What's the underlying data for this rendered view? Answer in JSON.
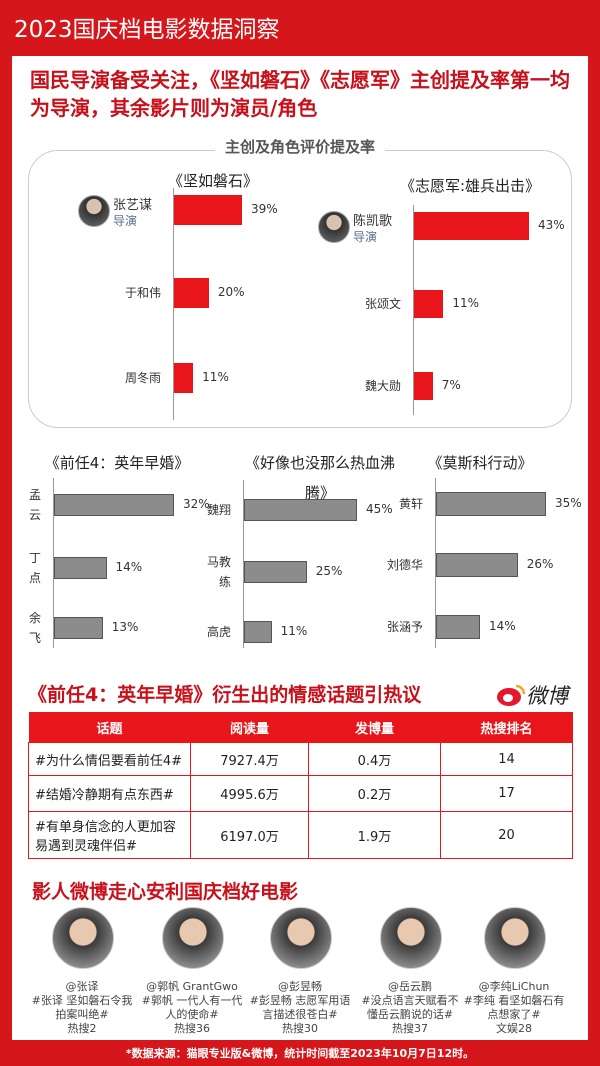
{
  "header": {
    "title": "2023国庆档电影数据洞察"
  },
  "headline": "国民导演备受关注，《坚如磐石》《志愿军》主创提及率第一均为导演，其余影片则为演员/角色",
  "section_title": "主创及角色评价提及率",
  "chart_data": [
    {
      "type": "bar",
      "title": "《坚如磐石》",
      "categories": [
        "张艺谋",
        "于和伟",
        "周冬雨"
      ],
      "category_notes": [
        "导演",
        null,
        null
      ],
      "values": [
        39,
        20,
        11
      ],
      "value_labels": [
        "39%",
        "20%",
        "11%"
      ],
      "color": "#e8161b"
    },
    {
      "type": "bar",
      "title": "《志愿军:雄兵出击》",
      "categories": [
        "陈凯歌",
        "张颂文",
        "魏大勋"
      ],
      "category_notes": [
        "导演",
        null,
        null
      ],
      "values": [
        43,
        11,
        7
      ],
      "value_labels": [
        "43%",
        "11%",
        "7%"
      ],
      "color": "#e8161b"
    },
    {
      "type": "bar",
      "title": "《前任4：英年早婚》",
      "categories": [
        "孟云",
        "丁点",
        "余飞"
      ],
      "values": [
        32,
        14,
        13
      ],
      "value_labels": [
        "32%",
        "14%",
        "13%"
      ],
      "color": "#8c8c8c"
    },
    {
      "type": "bar",
      "title": "《好像也没那么热血沸腾》",
      "categories": [
        "魏翔",
        "马教练",
        "高虎"
      ],
      "values": [
        45,
        25,
        11
      ],
      "value_labels": [
        "45%",
        "25%",
        "11%"
      ],
      "color": "#8c8c8c"
    },
    {
      "type": "bar",
      "title": "《莫斯科行动》",
      "categories": [
        "黄轩",
        "刘德华",
        "张涵予"
      ],
      "values": [
        35,
        26,
        14
      ],
      "value_labels": [
        "35%",
        "26%",
        "14%"
      ],
      "color": "#8c8c8c"
    }
  ],
  "topic_section": {
    "title": "《前任4：英年早婚》衍生出的情感话题引热议",
    "logo": "微博"
  },
  "table": {
    "columns": [
      "话题",
      "阅读量",
      "发博量",
      "热搜排名"
    ],
    "rows": [
      [
        "#为什么情侣要看前任4#",
        "7927.4万",
        "0.4万",
        "14"
      ],
      [
        "#结婚冷静期有点东西#",
        "4995.6万",
        "0.2万",
        "17"
      ],
      [
        "#有单身信念的人更加容易遇到灵魂伴侣#",
        "6197.0万",
        "1.9万",
        "20"
      ]
    ]
  },
  "people_section": {
    "title": "影人微博走心安利国庆档好电影",
    "people": [
      {
        "handle": "@张译",
        "post": "#张译 坚如磐石令我拍案叫绝#",
        "rank": "热搜2"
      },
      {
        "handle": "@郭帆 GrantGwo",
        "post": "#郭帆 一代人有一代人的使命#",
        "rank": "热搜36"
      },
      {
        "handle": "@彭昱畅",
        "post": "#彭昱畅 志愿军用语言描述很苍白#",
        "rank": "热搜30"
      },
      {
        "handle": "@岳云鹏",
        "post": "#没点语言天赋看不懂岳云鹏说的话#",
        "rank": "热搜37"
      },
      {
        "handle": "@李纯LiChun",
        "post": "#李纯 看坚如磐石有点想家了#",
        "rank": "文娱28"
      }
    ]
  },
  "footer": "*数据来源：猫眼专业版&微博，统计时间截至2023年10月7日12时。"
}
